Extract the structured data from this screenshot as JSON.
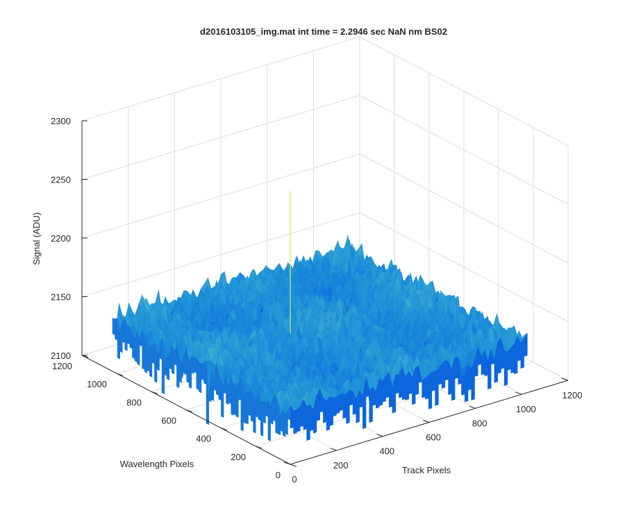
{
  "chart_data": {
    "type": "surface",
    "title": "d2016103105_img.mat int time = 2.2946 sec  NaN nm BS02",
    "xlabel": "Track Pixels",
    "ylabel": "Wavelength Pixels",
    "zlabel": "Signal (ADU)",
    "xlim": [
      0,
      1200
    ],
    "ylim": [
      0,
      1200
    ],
    "zlim": [
      2100,
      2300
    ],
    "xticks": [
      "0",
      "200",
      "400",
      "600",
      "800",
      "1000",
      "1200"
    ],
    "yticks": [
      "0",
      "200",
      "400",
      "600",
      "800",
      "1000",
      "1200"
    ],
    "zticks": [
      "2100",
      "2150",
      "2200",
      "2250",
      "2300"
    ],
    "grid": true,
    "colormap": "parula",
    "surface_extent": {
      "x": [
        0,
        1024
      ],
      "y": [
        0,
        1024
      ]
    },
    "baseline_signal": 2143,
    "noise_amplitude": 15,
    "peak": {
      "x": 420,
      "y": 560,
      "z": 2265
    },
    "colors": {
      "low": "#0a5fe0",
      "mid": "#1c8fd8",
      "high": "#48b8d0",
      "axis": "#262626",
      "grid": "#dcdcdc"
    }
  }
}
